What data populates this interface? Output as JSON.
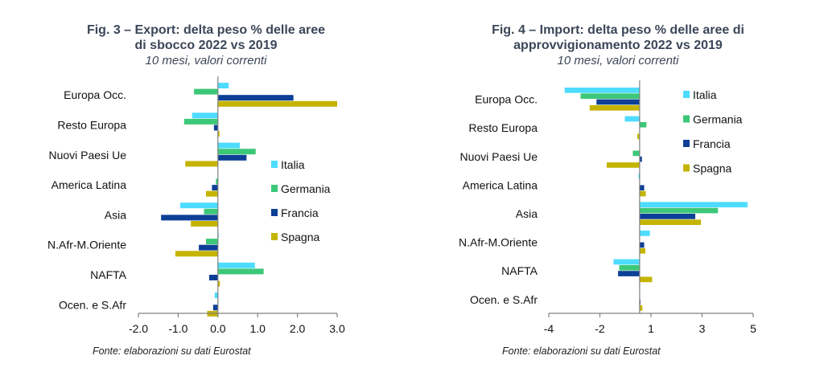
{
  "colors": {
    "Italia": "#4ddcff",
    "Germania": "#3cc878",
    "Francia": "#0d3f96",
    "Spagna": "#c4b400",
    "axis": "#808080"
  },
  "chart_data": [
    {
      "type": "bar",
      "orientation": "horizontal",
      "title_line1": "Fig. 3 – Export: delta peso % delle aree",
      "title_line2": "di sbocco 2022 vs 2019",
      "subtitle": "10 mesi, valori correnti",
      "source": "Fonte: elaborazioni su dati Eurostat",
      "categories": [
        "Europa Occ.",
        "Resto Europa",
        "Nuovi Paesi Ue",
        "America Latina",
        "Asia",
        "N.Afr-M.Oriente",
        "NAFTA",
        "Ocen. e S.Afr"
      ],
      "series": [
        {
          "name": "Italia",
          "values": [
            0.27,
            -0.65,
            0.55,
            0.0,
            -0.95,
            0.02,
            0.93,
            -0.08
          ]
        },
        {
          "name": "Germania",
          "values": [
            -0.6,
            -0.85,
            0.95,
            -0.05,
            -0.35,
            -0.3,
            1.15,
            -0.01
          ]
        },
        {
          "name": "Francia",
          "values": [
            1.9,
            -0.1,
            0.72,
            -0.15,
            -1.43,
            -0.48,
            -0.22,
            -0.12
          ]
        },
        {
          "name": "Spagna",
          "values": [
            3.0,
            0.04,
            -0.82,
            -0.3,
            -0.68,
            -1.07,
            0.05,
            -0.27
          ]
        }
      ],
      "xlim": [
        -2.0,
        3.0
      ],
      "xticks": [
        -2.0,
        -1.0,
        0.0,
        1.0,
        2.0,
        3.0
      ],
      "xtick_labels": [
        "-2.0",
        "-1.0",
        "0.0",
        "1.0",
        "2.0",
        "3.0"
      ],
      "legend": [
        "Italia",
        "Germania",
        "Francia",
        "Spagna"
      ],
      "legend_position": "right",
      "grid": false
    },
    {
      "type": "bar",
      "orientation": "horizontal",
      "title_line1": "Fig. 4 – Import: delta peso % delle aree di",
      "title_line2": "approvvigionamento 2022 vs 2019",
      "subtitle": "10 mesi, valori correnti",
      "source": "Fonte: elaborazioni su dati Eurostat",
      "categories": [
        "Europa Occ.",
        "Resto Europa",
        "Nuovi Paesi Ue",
        "America Latina",
        "Asia",
        "N.Afr-M.Oriente",
        "NAFTA",
        "Ocen. e S.Afr"
      ],
      "series": [
        {
          "name": "Italia",
          "values": [
            -3.3,
            -0.65,
            0.0,
            -0.05,
            4.75,
            0.45,
            -1.15,
            0.0
          ]
        },
        {
          "name": "Germania",
          "values": [
            -2.6,
            0.3,
            -0.3,
            0.0,
            3.45,
            0.0,
            -0.9,
            0.0
          ]
        },
        {
          "name": "Francia",
          "values": [
            -1.9,
            0.0,
            0.1,
            0.2,
            2.45,
            0.2,
            -0.95,
            0.02
          ]
        },
        {
          "name": "Spagna",
          "values": [
            -2.2,
            -0.1,
            -1.45,
            0.27,
            2.7,
            0.25,
            0.55,
            0.12
          ]
        }
      ],
      "xlim": [
        -4,
        5
      ],
      "xticks": [
        -4,
        -1.75,
        0.5,
        2.75,
        5
      ],
      "xtick_labels": [
        "-4",
        "-2",
        "1",
        "3",
        "5"
      ],
      "legend": [
        "Italia",
        "Germania",
        "Francia",
        "Spagna"
      ],
      "legend_position": "top-right",
      "grid": false
    }
  ]
}
